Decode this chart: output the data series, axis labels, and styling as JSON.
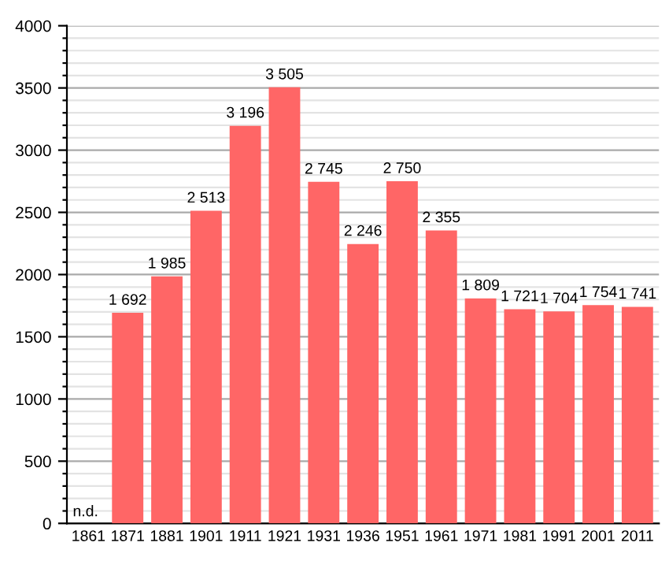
{
  "chart_data": {
    "type": "bar",
    "categories": [
      "1861",
      "1871",
      "1881",
      "1901",
      "1911",
      "1921",
      "1931",
      "1936",
      "1951",
      "1961",
      "1971",
      "1981",
      "1991",
      "2001",
      "2011"
    ],
    "values": [
      null,
      1692,
      1985,
      2513,
      3196,
      3505,
      2745,
      2246,
      2750,
      2355,
      1809,
      1721,
      1704,
      1754,
      1741
    ],
    "value_labels": [
      "n.d.",
      "1 692",
      "1 985",
      "2 513",
      "3 196",
      "3 505",
      "2 745",
      "2 246",
      "2 750",
      "2 355",
      "1 809",
      "1 721",
      "1 704",
      "1 754",
      "1 741"
    ],
    "color": "#ff6666",
    "ylim": [
      0,
      4000
    ],
    "yticks": [
      0,
      {
        "value": 100,
        "label": null
      },
      {
        "value": 200,
        "label": null
      },
      {
        "value": 300,
        "label": null
      },
      {
        "value": 400,
        "label": null
      },
      500,
      {
        "value": 600,
        "label": null
      },
      {
        "value": 700,
        "label": null
      },
      {
        "value": 800,
        "label": null
      },
      {
        "value": 900,
        "label": null
      },
      1000,
      {
        "value": 1100,
        "label": null
      },
      {
        "value": 1200,
        "label": null
      },
      {
        "value": 1300,
        "label": null
      },
      {
        "value": 1400,
        "label": null
      },
      1500,
      {
        "value": 1600,
        "label": null
      },
      {
        "value": 1700,
        "label": null
      },
      {
        "value": 1800,
        "label": null
      },
      {
        "value": 1900,
        "label": null
      },
      2000,
      {
        "value": 2100,
        "label": null
      },
      {
        "value": 2200,
        "label": null
      },
      {
        "value": 2300,
        "label": null
      },
      {
        "value": 2400,
        "label": null
      },
      2500,
      {
        "value": 2600,
        "label": null
      },
      {
        "value": 2700,
        "label": null
      },
      {
        "value": 2800,
        "label": null
      },
      {
        "value": 2900,
        "label": null
      },
      3000,
      {
        "value": 3100,
        "label": null
      },
      {
        "value": 3200,
        "label": null
      },
      {
        "value": 3300,
        "label": null
      },
      {
        "value": 3400,
        "label": null
      },
      3500,
      {
        "value": 3600,
        "label": null
      },
      {
        "value": 3700,
        "label": null
      },
      {
        "value": 3800,
        "label": null
      },
      {
        "value": 3900,
        "label": null
      },
      4000
    ],
    "grid": "y"
  }
}
